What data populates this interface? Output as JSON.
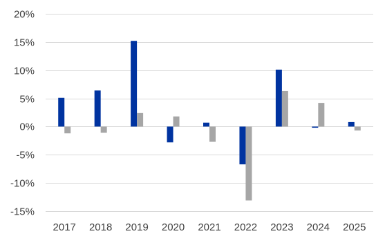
{
  "chart_data": {
    "type": "bar",
    "categories": [
      "2017",
      "2018",
      "2019",
      "2020",
      "2021",
      "2022",
      "2023",
      "2024",
      "2025"
    ],
    "series": [
      {
        "color": "#0033a0",
        "values": [
          5.1,
          6.4,
          15.2,
          -2.8,
          0.7,
          -6.7,
          10.1,
          -0.2,
          0.8
        ]
      },
      {
        "color": "#a6a6a6",
        "values": [
          -1.2,
          -1.1,
          2.4,
          1.8,
          -2.7,
          -13.1,
          6.3,
          4.2,
          -0.7
        ]
      }
    ],
    "ylim": [
      -15,
      20
    ],
    "ytick_values": [
      20,
      15,
      10,
      5,
      0,
      -5,
      -10,
      -15
    ],
    "ytick_labels": [
      "20%",
      "15%",
      "10%",
      "5%",
      "0%",
      "-5%",
      "-10%",
      "-15%"
    ],
    "grid": true,
    "legend": "none",
    "title": "",
    "xlabel": "",
    "ylabel": ""
  }
}
